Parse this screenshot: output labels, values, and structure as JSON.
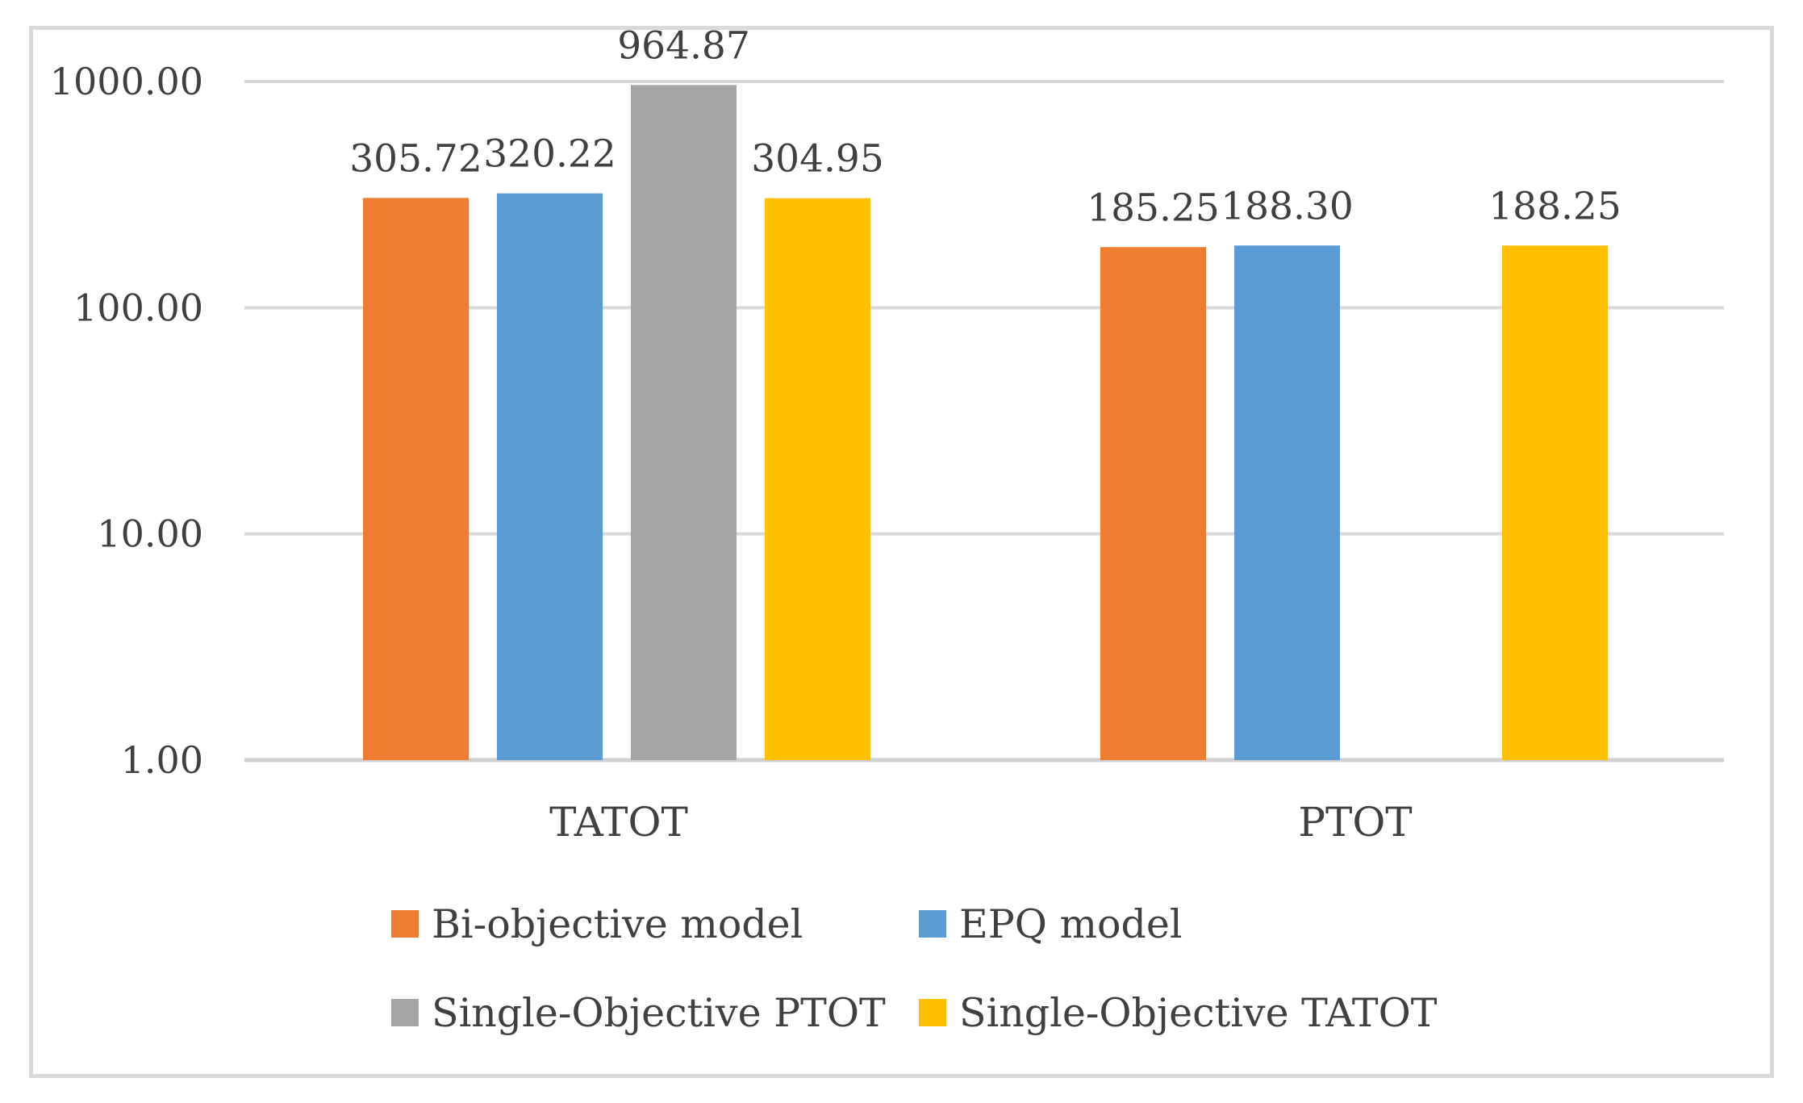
{
  "chart_data": {
    "type": "bar",
    "scale": "log",
    "categories": [
      "TATOT",
      "PTOT"
    ],
    "series": [
      {
        "name": "Bi-objective model",
        "color": "#ED7D31",
        "values": [
          305.72,
          185.25
        ],
        "labels": [
          "305.72",
          "185.25"
        ]
      },
      {
        "name": "EPQ model",
        "color": "#5B9BD5",
        "values": [
          320.22,
          188.3
        ],
        "labels": [
          "320.22",
          "188.30"
        ]
      },
      {
        "name": "Single-Objective PTOT",
        "color": "#A5A5A5",
        "values": [
          964.87,
          null
        ],
        "labels": [
          "964.87",
          ""
        ]
      },
      {
        "name": "Single-Objective TATOT",
        "color": "#FFC000",
        "values": [
          304.95,
          188.25
        ],
        "labels": [
          "304.95",
          "188.25"
        ]
      }
    ],
    "y_ticks": [
      1,
      10,
      100,
      1000
    ],
    "y_tick_labels": [
      "1.00",
      "10.00",
      "100.00",
      "1000.00"
    ],
    "ylim": [
      1,
      1000
    ],
    "grid": true,
    "legend_position": "bottom",
    "title": "",
    "xlabel": "",
    "ylabel": ""
  }
}
